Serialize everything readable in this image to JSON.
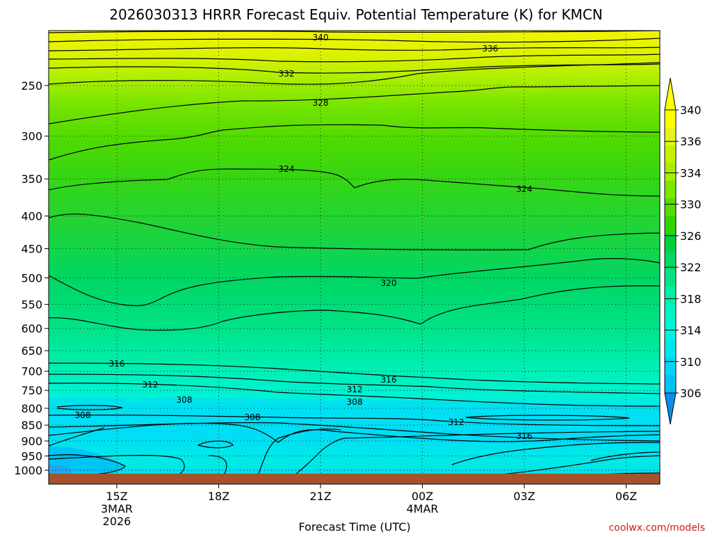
{
  "chart_data": {
    "type": "contour-time-height",
    "title": "2026030313 HRRR Forecast Equiv. Potential Temperature (K) for KMCN",
    "xlabel": "Forecast Time (UTC)",
    "ylabel": "",
    "credit": "coolwx.com/models",
    "y_axis": {
      "ticks": [
        "250",
        "300",
        "350",
        "400",
        "450",
        "500",
        "550",
        "600",
        "650",
        "700",
        "750",
        "800",
        "850",
        "900",
        "950",
        "1000"
      ],
      "scale": "log-pressure",
      "inverted": true
    },
    "x_axis": {
      "ticks": [
        {
          "label": "15Z",
          "sub1": "3MAR",
          "sub2": "2026"
        },
        {
          "label": "18Z",
          "sub1": "",
          "sub2": ""
        },
        {
          "label": "21Z",
          "sub1": "",
          "sub2": ""
        },
        {
          "label": "00Z",
          "sub1": "4MAR",
          "sub2": ""
        },
        {
          "label": "03Z",
          "sub1": "",
          "sub2": ""
        },
        {
          "label": "06Z",
          "sub1": "",
          "sub2": ""
        }
      ]
    },
    "colorbar": {
      "labels": [
        "340",
        "336",
        "334",
        "330",
        "326",
        "322",
        "318",
        "314",
        "310",
        "306"
      ],
      "colors": [
        "#ffff00",
        "#e6f41c",
        "#c7f000",
        "#a6ee00",
        "#7ee600",
        "#55dd00",
        "#2fd400",
        "#00d13b",
        "#00d860",
        "#00e487",
        "#00f0a7",
        "#00f5c6",
        "#00f3dc",
        "#00e7ef",
        "#00d5f7",
        "#00c0f5"
      ]
    },
    "contour_labels": [
      "340",
      "336",
      "332",
      "328",
      "324",
      "324",
      "320",
      "316",
      "316",
      "312",
      "312",
      "308",
      "308",
      "308",
      "308",
      "312",
      "316"
    ],
    "grid": true,
    "terrain_color": "#a5522d"
  }
}
